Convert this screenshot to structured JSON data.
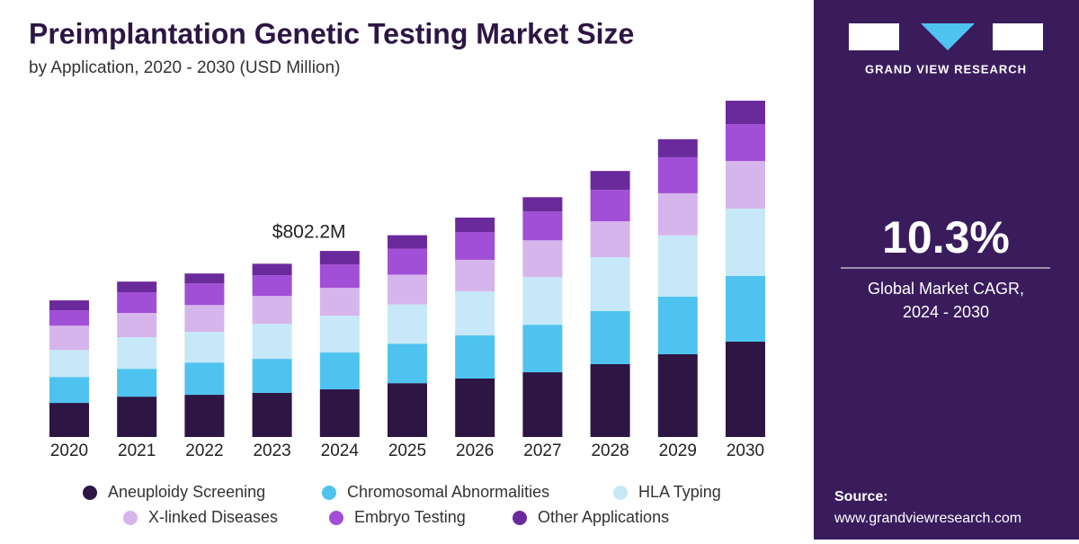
{
  "chart_data": {
    "type": "stacked-bar",
    "title": "Preimplantation Genetic Testing Market Size",
    "subtitle": "by Application, 2020 - 2030 (USD Million)",
    "categories": [
      "2020",
      "2021",
      "2022",
      "2023",
      "2024",
      "2025",
      "2026",
      "2027",
      "2028",
      "2029",
      "2030"
    ],
    "series": [
      {
        "name": "Aneuploidy Screening",
        "color": "#2d1544",
        "values": [
          147,
          174,
          182,
          190,
          205.4,
          232,
          252,
          279,
          314,
          357,
          411
        ]
      },
      {
        "name": "Chromosomal Abnormalities",
        "color": "#4fc3ef",
        "values": [
          112,
          120,
          139,
          147,
          158.9,
          170,
          186,
          205,
          229,
          248,
          283
        ]
      },
      {
        "name": "HLA Typing",
        "color": "#c6e8f8",
        "values": [
          116,
          136,
          132,
          151,
          158.9,
          170,
          190,
          205,
          232,
          264,
          291
        ]
      },
      {
        "name": "X-linked Diseases",
        "color": "#d6b5ec",
        "values": [
          105,
          105,
          116,
          120,
          120.1,
          128,
          136,
          159,
          155,
          182,
          205
        ]
      },
      {
        "name": "Embryo Testing",
        "color": "#a14fd6",
        "values": [
          66,
          89,
          93,
          89,
          100.8,
          112,
          120,
          124,
          136,
          155,
          159
        ]
      },
      {
        "name": "Other Applications",
        "color": "#6b2a9c",
        "values": [
          43,
          46,
          43,
          50,
          58.1,
          58,
          62,
          62,
          81,
          78,
          101
        ]
      }
    ],
    "annotation": {
      "label": "$802.2M",
      "x": "2024"
    }
  },
  "panel": {
    "brand": "GRAND VIEW RESEARCH",
    "cagr": "10.3%",
    "cagr_label_1": "Global Market CAGR,",
    "cagr_label_2": "2024 - 2030",
    "source_label": "Source:",
    "source_url": "www.grandviewresearch.com"
  }
}
